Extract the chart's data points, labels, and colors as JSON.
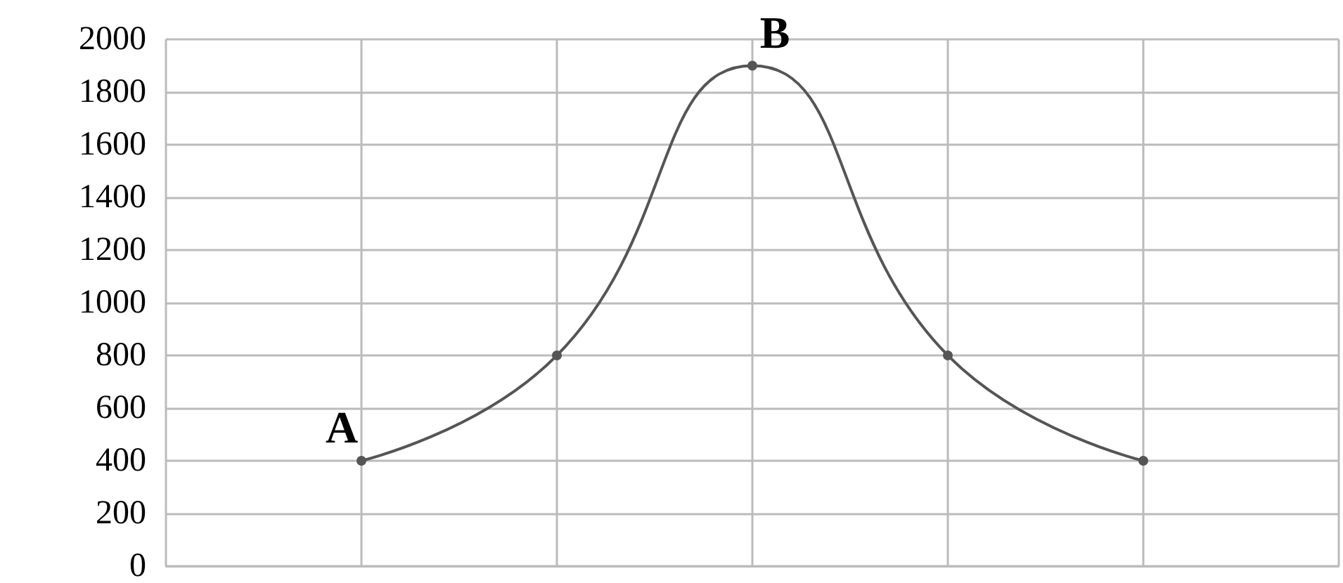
{
  "chart_data": {
    "type": "line",
    "categories": [
      null,
      null,
      null,
      null,
      null,
      null,
      null
    ],
    "series": [
      {
        "color": "#555555",
        "values": [
          null,
          400,
          800,
          1900,
          800,
          400,
          null
        ]
      }
    ],
    "ylim": [
      0,
      2000
    ],
    "yticks": [
      0,
      200,
      400,
      600,
      800,
      1000,
      1200,
      1400,
      1600,
      1800,
      2000
    ],
    "grid": true,
    "marker": "circle",
    "line_style": "solid",
    "annotations": [
      "A",
      "B"
    ]
  }
}
